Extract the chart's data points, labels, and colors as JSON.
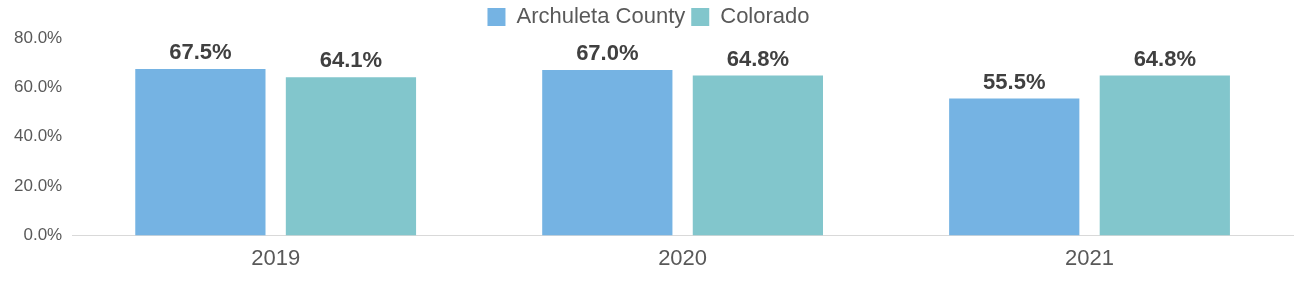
{
  "chart_data": {
    "type": "bar",
    "categories": [
      "2019",
      "2020",
      "2021"
    ],
    "series": [
      {
        "name": "Archuleta County",
        "color": "#75b3e3",
        "values": [
          67.5,
          67.0,
          55.5
        ]
      },
      {
        "name": "Colorado",
        "color": "#82c6cc",
        "values": [
          64.1,
          64.8,
          64.8
        ]
      }
    ],
    "ylim": [
      0,
      80
    ],
    "yticks": [
      {
        "value": 0,
        "label": "0.0%"
      },
      {
        "value": 20,
        "label": "20.0%"
      },
      {
        "value": 40,
        "label": "40.0%"
      },
      {
        "value": 60,
        "label": "60.0%"
      },
      {
        "value": 80,
        "label": "80.0%"
      }
    ],
    "value_labels": [
      [
        "67.5%",
        "67.0%",
        "55.5%"
      ],
      [
        "64.1%",
        "64.8%",
        "64.8%"
      ]
    ],
    "grid": false,
    "legend": "top"
  }
}
